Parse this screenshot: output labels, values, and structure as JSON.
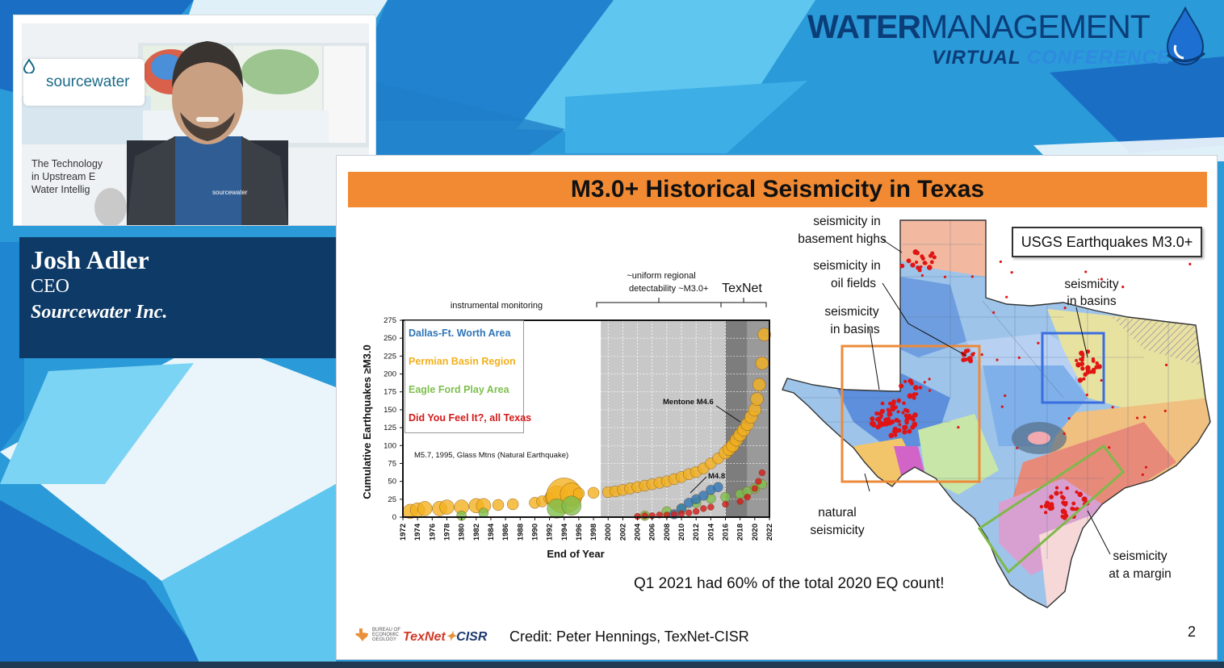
{
  "conference": {
    "title_bold": "WATER",
    "title_light": "MANAGEMENT",
    "subtitle_a": "VIRTUAL",
    "subtitle_b": "CONFERENCE",
    "icon": "water-drop-icon"
  },
  "webcam": {
    "company_logo": "sourcewater",
    "shirt_logo": "sourcewater",
    "tagline_lines": [
      "The Technology",
      "in Upstream E",
      "Water Intellig"
    ]
  },
  "speaker": {
    "name": "Josh Adler",
    "role": "CEO",
    "organization": "Sourcewater Inc."
  },
  "slide": {
    "title": "M3.0+ Historical Seismicity in Texas",
    "usgs_label": "USGS Earthquakes M3.0+",
    "q1_note": "Q1 2021 had 60% of the total 2020 EQ count!",
    "credit": "Credit: Peter Hennings, TexNet-CISR",
    "page_number": "2",
    "logo_texnet_a": "TexNet",
    "logo_texnet_b": "CISR",
    "logo_beg_lines": [
      "BUREAU OF",
      "ECONOMIC",
      "GEOLOGY"
    ],
    "map_annotations": {
      "basement_highs": [
        "seismicity in",
        "basement highs"
      ],
      "oil_fields": [
        "seismicity in",
        "oil fields"
      ],
      "basins_west": [
        "seismicity",
        "in basins"
      ],
      "basins_east": [
        "seismicity",
        "in basins"
      ],
      "natural": [
        "natural",
        "seismicity"
      ],
      "margin": [
        "seismicity",
        "at a margin"
      ]
    },
    "colors": {
      "title_bar": "#f18a33",
      "orange_box": "#ec8a3a",
      "blue_box": "#3a6ee0",
      "green_box": "#7fb84a",
      "quake_dots": "#e01414"
    }
  },
  "chart_data": {
    "type": "scatter",
    "ylabel": "Cumulative Earthquakes ≥M3.0",
    "xlabel": "End of Year",
    "xlim": [
      1972,
      2022
    ],
    "ylim": [
      0,
      275
    ],
    "x_ticks": [
      1972,
      1974,
      1976,
      1978,
      1980,
      1982,
      1984,
      1986,
      1988,
      1990,
      1992,
      1994,
      1996,
      1998,
      2000,
      2002,
      2004,
      2006,
      2008,
      2010,
      2012,
      2014,
      2016,
      2018,
      2020,
      2022
    ],
    "y_ticks": [
      0,
      25,
      50,
      75,
      100,
      125,
      150,
      175,
      200,
      225,
      250,
      275
    ],
    "period_labels": {
      "instrumental": "instrumental monitoring",
      "uniform_line1": "~uniform regional",
      "uniform_line2": "detectability ~M3.0+",
      "texnet": "TexNet"
    },
    "annotations": {
      "glass_mtns": "M5.7, 1995, Glass Mtns (Natural Earthquake)",
      "mentone": "Mentone M4.6",
      "m48": "M4.8"
    },
    "legend": [
      {
        "name": "Dallas-Ft. Worth Area",
        "color": "#2e75b6"
      },
      {
        "name": "Permian Basin Region",
        "color": "#f2b01e"
      },
      {
        "name": "Eagle Ford Play Area",
        "color": "#7dbf4d"
      },
      {
        "name": "Did You Feel It?, all Texas",
        "color": "#d41a1a"
      }
    ],
    "series": [
      {
        "name": "Dallas-Ft. Worth Area",
        "color": "#2e75b6",
        "x": [
          2009,
          2010,
          2011,
          2012,
          2013,
          2014,
          2015
        ],
        "y": [
          4,
          12,
          20,
          25,
          30,
          38,
          42
        ]
      },
      {
        "name": "Eagle Ford Play Area",
        "color": "#7dbf4d",
        "x": [
          1980,
          1983,
          1993,
          1995,
          2005,
          2008,
          2010,
          2012,
          2014,
          2016,
          2018,
          2019,
          2020,
          2021
        ],
        "y": [
          2,
          6,
          12,
          16,
          2,
          8,
          12,
          20,
          26,
          28,
          32,
          36,
          40,
          46
        ]
      },
      {
        "name": "Did You Feel It?, all Texas",
        "color": "#d41a1a",
        "x": [
          2004,
          2005,
          2006,
          2007,
          2008,
          2009,
          2010,
          2011,
          2012,
          2013,
          2014,
          2016,
          2018,
          2019,
          2020,
          2020.5,
          2021
        ],
        "y": [
          1,
          2,
          2,
          3,
          3,
          4,
          5,
          6,
          8,
          12,
          14,
          18,
          22,
          28,
          40,
          50,
          62
        ]
      },
      {
        "name": "Permian Basin Region",
        "color": "#f2b01e",
        "x": [
          1973,
          1974,
          1975,
          1977,
          1978,
          1980,
          1982,
          1983,
          1985,
          1987,
          1990,
          1991,
          1992,
          1993,
          1994,
          1995,
          1996,
          1998,
          2000,
          2001,
          2002,
          2003,
          2004,
          2005,
          2006,
          2007,
          2008,
          2009,
          2010,
          2011,
          2012,
          2013,
          2014,
          2015,
          2016,
          2016.5,
          2017,
          2017.5,
          2018,
          2018.5,
          2019,
          2019.5,
          2020,
          2020.3,
          2020.6,
          2021,
          2021.3
        ],
        "y": [
          8,
          10,
          12,
          12,
          14,
          14,
          16,
          16,
          17,
          18,
          20,
          22,
          26,
          28,
          30,
          32,
          33,
          34,
          35,
          36,
          38,
          40,
          42,
          44,
          46,
          48,
          50,
          53,
          56,
          60,
          63,
          68,
          75,
          82,
          90,
          95,
          100,
          108,
          115,
          122,
          130,
          140,
          150,
          165,
          185,
          215,
          255
        ]
      }
    ]
  }
}
